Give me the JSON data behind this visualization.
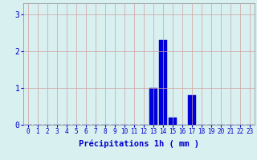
{
  "hours": [
    0,
    1,
    2,
    3,
    4,
    5,
    6,
    7,
    8,
    9,
    10,
    11,
    12,
    13,
    14,
    15,
    16,
    17,
    18,
    19,
    20,
    21,
    22,
    23
  ],
  "values": [
    0,
    0,
    0,
    0,
    0,
    0,
    0,
    0,
    0,
    0,
    0,
    0,
    0,
    1.0,
    2.3,
    0.2,
    0,
    0.8,
    0,
    0,
    0,
    0,
    0,
    0
  ],
  "bar_color": "#0000dd",
  "bar_edge_color": "#0000bb",
  "background_color": "#d8f0f0",
  "grid_color": "#d0a0a0",
  "xlabel": "Précipitations 1h ( mm )",
  "xlabel_color": "#0000cc",
  "xlabel_fontsize": 7.5,
  "tick_color": "#0000cc",
  "tick_fontsize": 5.5,
  "ytick_fontsize": 7,
  "yticks": [
    0,
    1,
    2,
    3
  ],
  "ylim": [
    0,
    3.3
  ],
  "xlim": [
    -0.5,
    23.5
  ]
}
